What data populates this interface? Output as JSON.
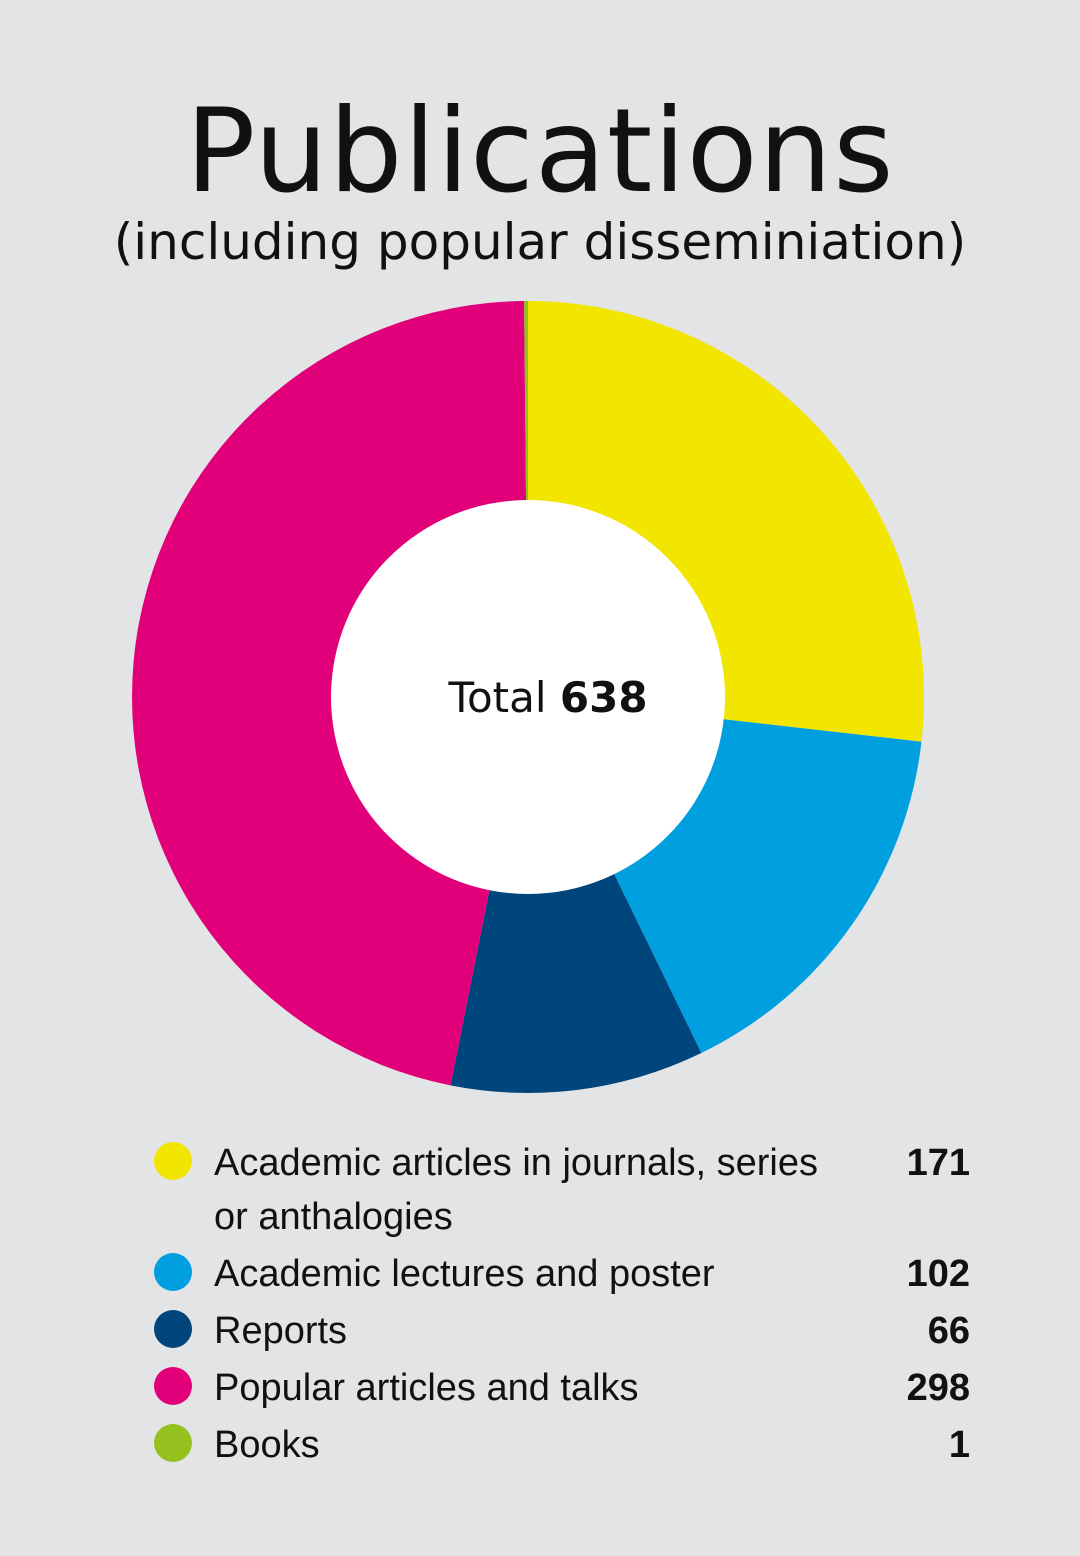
{
  "chart_data": {
    "type": "pie",
    "title": "Publications",
    "subtitle": "(including popular disseminiation)",
    "center_label_prefix": "Total",
    "center_label_value": "638",
    "legend_position": "bottom",
    "slices": [
      {
        "label": "Academic articles in journals, series or anthalogies",
        "value": 171,
        "color": "#f2e500"
      },
      {
        "label": "Academic lectures and poster",
        "value": 102,
        "color": "#009fdf"
      },
      {
        "label": "Reports",
        "value": 66,
        "color": "#00457c"
      },
      {
        "label": "Popular articles and talks",
        "value": 298,
        "color": "#e2007a"
      },
      {
        "label": "Books",
        "value": 1,
        "color": "#95c11f"
      }
    ]
  }
}
